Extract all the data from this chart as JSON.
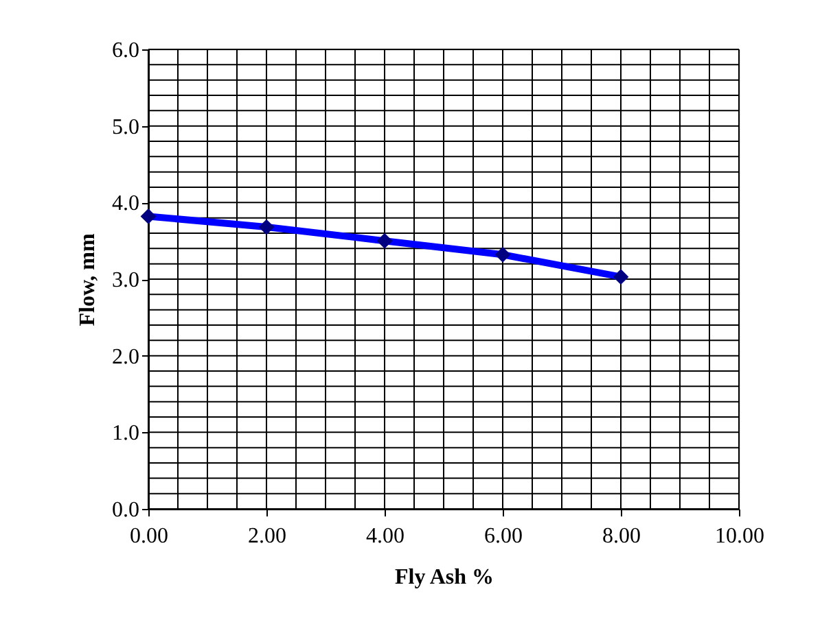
{
  "chart_data": {
    "type": "line",
    "xlabel": "Fly Ash %",
    "ylabel": "Flow, mm",
    "x": [
      0,
      2,
      4,
      6,
      8
    ],
    "series": [
      {
        "color": "#0000ff",
        "values": [
          3.82,
          3.68,
          3.5,
          3.32,
          3.03
        ]
      }
    ],
    "marker": "diamond",
    "line_style": "solid",
    "grid": true,
    "xlim": [
      0,
      10
    ],
    "ylim": [
      0,
      6
    ],
    "xticks": [
      {
        "value": 0,
        "label": "0.00"
      },
      {
        "value": 0.5,
        "label": null
      },
      {
        "value": 1,
        "label": null
      },
      {
        "value": 1.5,
        "label": null
      },
      {
        "value": 2,
        "label": "2.00"
      },
      {
        "value": 2.5,
        "label": null
      },
      {
        "value": 3,
        "label": null
      },
      {
        "value": 3.5,
        "label": null
      },
      {
        "value": 4,
        "label": "4.00"
      },
      {
        "value": 4.5,
        "label": null
      },
      {
        "value": 5,
        "label": null
      },
      {
        "value": 5.5,
        "label": null
      },
      {
        "value": 6,
        "label": "6.00"
      },
      {
        "value": 6.5,
        "label": null
      },
      {
        "value": 7,
        "label": null
      },
      {
        "value": 7.5,
        "label": null
      },
      {
        "value": 8,
        "label": "8.00"
      },
      {
        "value": 8.5,
        "label": null
      },
      {
        "value": 9,
        "label": null
      },
      {
        "value": 9.5,
        "label": null
      },
      {
        "value": 10,
        "label": "10.00"
      }
    ],
    "yticks": [
      {
        "value": 0,
        "label": "0.0"
      },
      {
        "value": 0.2,
        "label": null
      },
      {
        "value": 0.4,
        "label": null
      },
      {
        "value": 0.6,
        "label": null
      },
      {
        "value": 0.8,
        "label": null
      },
      {
        "value": 1,
        "label": "1.0"
      },
      {
        "value": 1.2,
        "label": null
      },
      {
        "value": 1.4,
        "label": null
      },
      {
        "value": 1.6,
        "label": null
      },
      {
        "value": 1.8,
        "label": null
      },
      {
        "value": 2,
        "label": "2.0"
      },
      {
        "value": 2.2,
        "label": null
      },
      {
        "value": 2.4,
        "label": null
      },
      {
        "value": 2.6,
        "label": null
      },
      {
        "value": 2.8,
        "label": null
      },
      {
        "value": 3,
        "label": "3.0"
      },
      {
        "value": 3.2,
        "label": null
      },
      {
        "value": 3.4,
        "label": null
      },
      {
        "value": 3.6,
        "label": null
      },
      {
        "value": 3.8,
        "label": null
      },
      {
        "value": 4,
        "label": "4.0"
      },
      {
        "value": 4.2,
        "label": null
      },
      {
        "value": 4.4,
        "label": null
      },
      {
        "value": 4.6,
        "label": null
      },
      {
        "value": 4.8,
        "label": null
      },
      {
        "value": 5,
        "label": "5.0"
      },
      {
        "value": 5.2,
        "label": null
      },
      {
        "value": 5.4,
        "label": null
      },
      {
        "value": 5.6,
        "label": null
      },
      {
        "value": 5.8,
        "label": null
      },
      {
        "value": 6,
        "label": "6.0"
      }
    ]
  }
}
